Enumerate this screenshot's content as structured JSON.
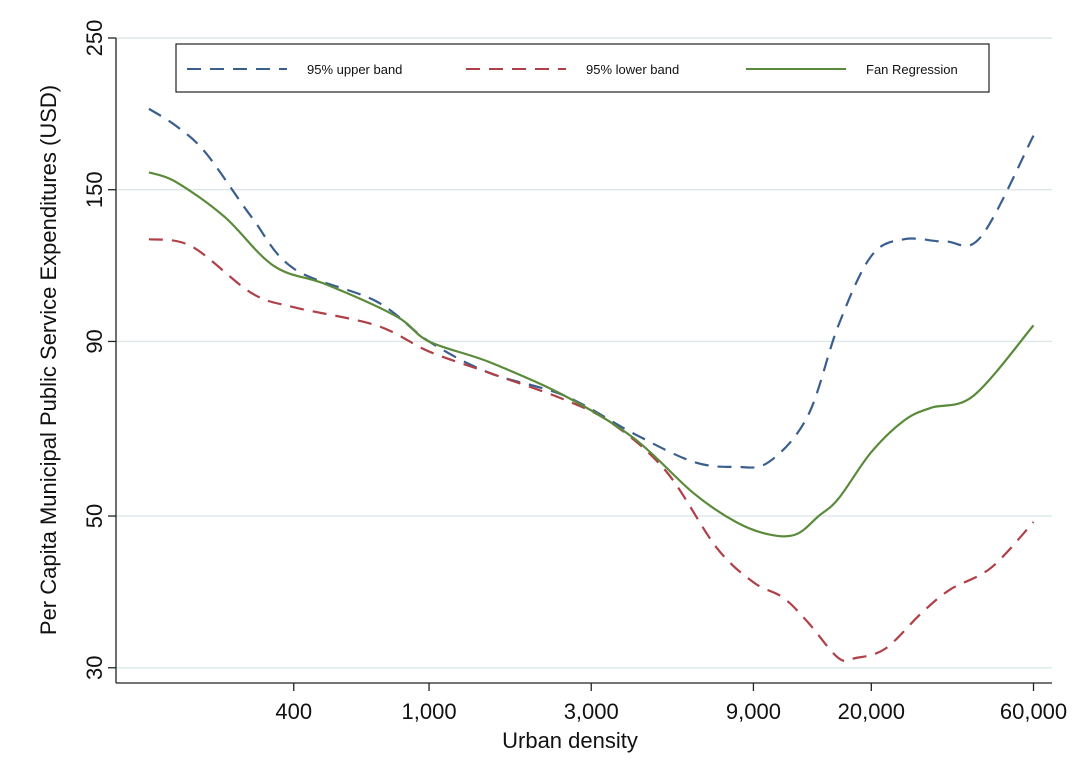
{
  "chart_data": {
    "type": "line",
    "xlabel": "Urban density",
    "ylabel": "Per Capita Municipal Public Service Expenditures (USD)",
    "x_scale": "log",
    "y_scale": "log",
    "xlim": [
      120,
      68000
    ],
    "ylim": [
      28.5,
      250
    ],
    "x_ticks": [
      400,
      1000,
      3000,
      9000,
      20000,
      60000
    ],
    "x_tick_labels": [
      "400",
      "1,000",
      "3,000",
      "9,000",
      "20,000",
      "60,000"
    ],
    "y_ticks": [
      30,
      50,
      90,
      150,
      250
    ],
    "y_tick_labels": [
      "30",
      "50",
      "90",
      "150",
      "250"
    ],
    "grid": true,
    "legend_position": "top",
    "series": [
      {
        "name": "95% upper band",
        "style": "dashed",
        "color": "#3a5f8f",
        "x": [
          150,
          180,
          220,
          300,
          400,
          700,
          1000,
          1500,
          2500,
          4000,
          6000,
          8000,
          10000,
          13000,
          16000,
          20000,
          25000,
          33000,
          42000,
          60000
        ],
        "y": [
          197,
          186,
          170,
          137,
          115,
          103,
          90,
          81,
          75,
          66,
          60,
          59,
          60,
          70,
          95,
          120,
          127,
          126,
          128,
          180
        ]
      },
      {
        "name": "95% lower band",
        "style": "dashed",
        "color": "#b04048",
        "x": [
          150,
          200,
          300,
          400,
          700,
          1000,
          1500,
          2500,
          3500,
          5000,
          7000,
          9000,
          11000,
          13000,
          16000,
          18000,
          22000,
          28000,
          34000,
          45000,
          60000
        ],
        "y": [
          127,
          124,
          106,
          101,
          95,
          87,
          81,
          74,
          68,
          58,
          45,
          40,
          38,
          35,
          31,
          31,
          32,
          36,
          39,
          42,
          49
        ]
      },
      {
        "name": "Fan Regression",
        "style": "solid",
        "color": "#5a8a3a",
        "x": [
          150,
          180,
          250,
          350,
          500,
          800,
          1000,
          1500,
          2500,
          4000,
          6000,
          8000,
          10000,
          12000,
          14000,
          16000,
          20000,
          25000,
          30000,
          40000,
          60000
        ],
        "y": [
          159,
          154,
          137,
          116,
          109,
          98,
          90,
          84,
          75,
          65,
          54,
          49,
          47,
          47,
          50,
          53,
          62,
          69,
          72,
          75,
          95
        ]
      }
    ]
  }
}
